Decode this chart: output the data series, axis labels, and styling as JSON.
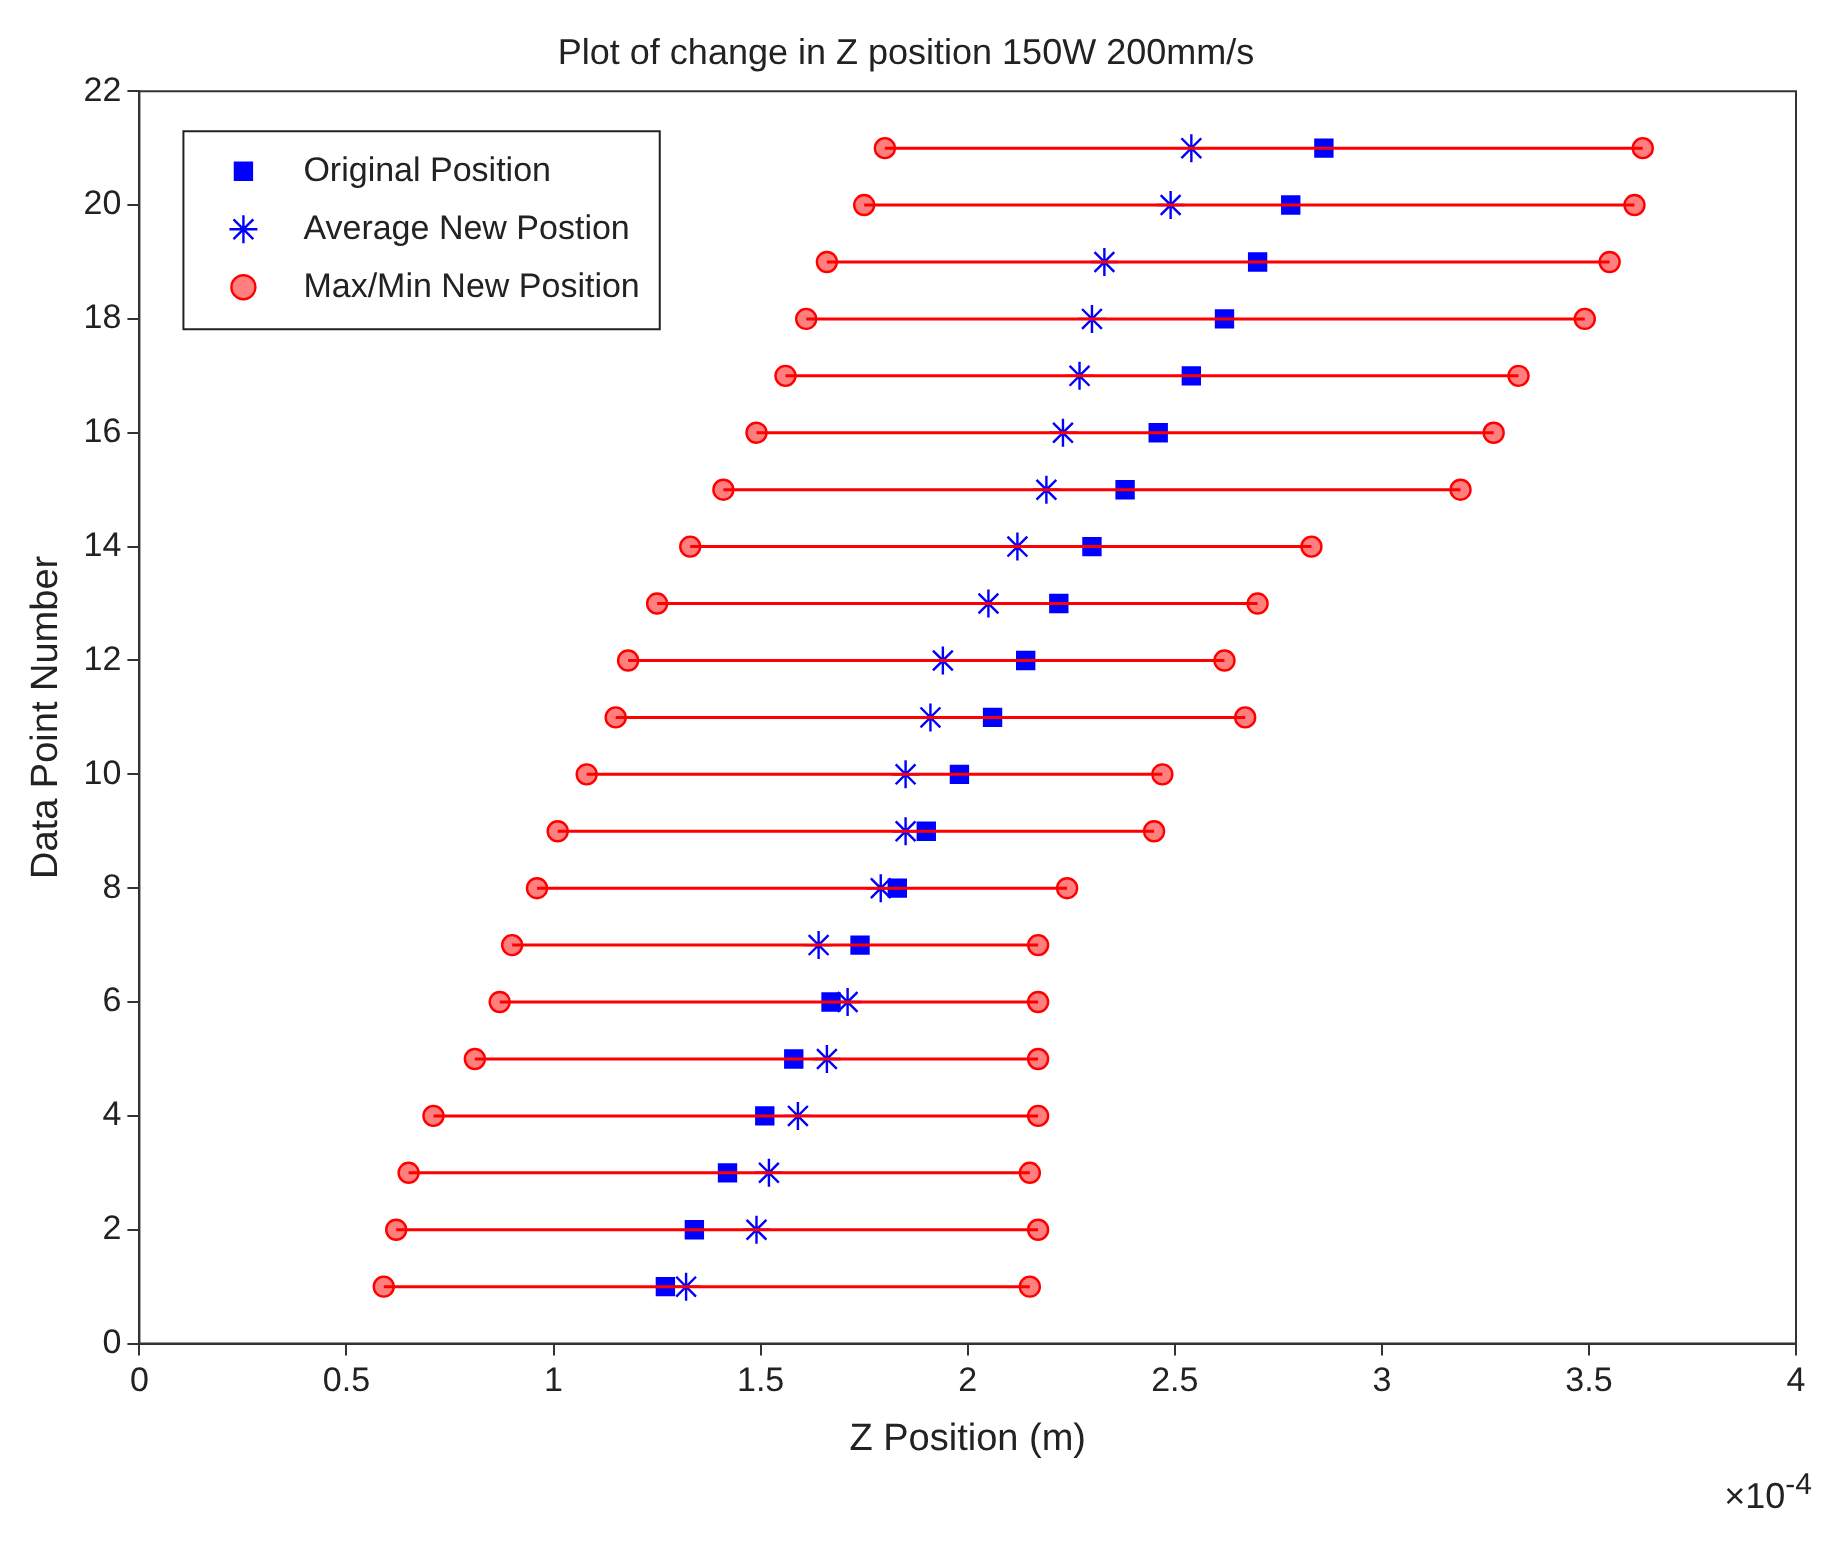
{
  "chart_data": {
    "type": "scatter",
    "title": "Plot of change in Z position 150W 200mm/s",
    "xlabel": "Z Position (m)",
    "ylabel": "Data Point Number",
    "xlim": [
      0,
      4
    ],
    "xticks": [
      0,
      0.5,
      1,
      1.5,
      2,
      2.5,
      3,
      3.5,
      4
    ],
    "ylim": [
      0,
      22
    ],
    "yticks": [
      0,
      2,
      4,
      6,
      8,
      10,
      12,
      14,
      16,
      18,
      20,
      22
    ],
    "grid": false,
    "legend": "top left",
    "annotations": [
      "×10$^{-4}$"
    ],
    "series": [
      {
        "name": "Max/Min New Position",
        "type": "line",
        "color": "#ff0000",
        "marker": "circle",
        "line_style": "solid",
        "x": [
          0.59,
          2.15,
          null,
          0.62,
          2.17,
          null,
          0.65,
          2.15,
          null,
          0.71,
          2.17,
          null,
          0.81,
          2.17,
          null,
          0.87,
          2.17,
          null,
          0.9,
          2.17,
          null,
          0.96,
          2.24,
          null,
          1.01,
          2.45,
          null,
          1.08,
          2.47,
          null,
          1.15,
          2.67,
          null,
          1.18,
          2.62,
          null,
          1.25,
          2.7,
          null,
          1.33,
          2.83,
          null,
          1.41,
          3.19,
          null,
          1.49,
          3.27,
          null,
          1.56,
          3.33,
          null,
          1.61,
          3.49,
          null,
          1.66,
          3.55,
          null,
          1.75,
          3.61,
          null,
          1.8,
          3.63
        ],
        "values": [
          1,
          1,
          null,
          2,
          2,
          null,
          3,
          3,
          null,
          4,
          4,
          null,
          5,
          5,
          null,
          6,
          6,
          null,
          7,
          7,
          null,
          8,
          8,
          null,
          9,
          9,
          null,
          10,
          10,
          null,
          11,
          11,
          null,
          12,
          12,
          null,
          13,
          13,
          null,
          14,
          14,
          null,
          15,
          15,
          null,
          16,
          16,
          null,
          17,
          17,
          null,
          18,
          18,
          null,
          19,
          19,
          null,
          20,
          20,
          null,
          21,
          21
        ]
      },
      {
        "name": "Original Position",
        "type": "scatter",
        "color": "#0000ff",
        "marker": "square",
        "x": [
          1.27,
          1.34,
          1.42,
          1.51,
          1.58,
          1.67,
          1.74,
          1.83,
          1.9,
          1.98,
          2.06,
          2.14,
          2.22,
          2.3,
          2.38,
          2.46,
          2.54,
          2.62,
          2.7,
          2.78,
          2.86
        ],
        "values": [
          1,
          2,
          3,
          4,
          5,
          6,
          7,
          8,
          9,
          10,
          11,
          12,
          13,
          14,
          15,
          16,
          17,
          18,
          19,
          20,
          21
        ]
      },
      {
        "name": "Average New Postion",
        "type": "scatter",
        "color": "#0000ff",
        "marker": "cross",
        "x": [
          1.32,
          1.49,
          1.52,
          1.59,
          1.66,
          1.71,
          1.64,
          1.79,
          1.85,
          1.85,
          1.91,
          1.94,
          2.05,
          2.12,
          2.19,
          2.23,
          2.27,
          2.3,
          2.33,
          2.49,
          2.54
        ],
        "values": [
          1,
          2,
          3,
          4,
          5,
          6,
          7,
          8,
          9,
          10,
          11,
          12,
          13,
          14,
          15,
          16,
          17,
          18,
          19,
          20,
          21
        ]
      }
    ]
  }
}
